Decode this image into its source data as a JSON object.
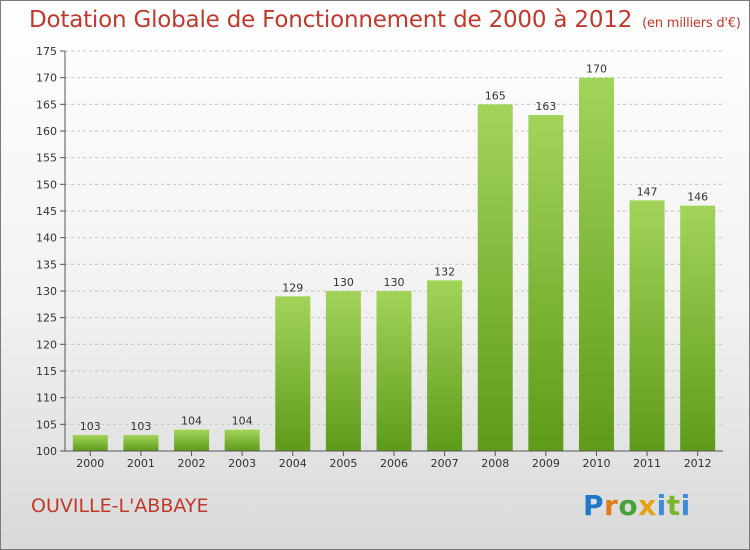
{
  "header": {
    "title": "Dotation Globale de Fonctionnement de 2000 à 2012",
    "unit": "(en milliers d'€)"
  },
  "footer": {
    "city": "OUVILLE-L'ABBAYE",
    "logo": [
      "P",
      "r",
      "o",
      "x",
      "i",
      "t",
      "i"
    ]
  },
  "colors": {
    "title": "#c0392b",
    "bar_light": "#a3d45a",
    "bar_dark": "#5e9b1a",
    "grid": "#c8c8c8"
  },
  "chart_data": {
    "type": "bar",
    "title": "Dotation Globale de Fonctionnement de 2000 à 2012",
    "subtitle": "(en milliers d'€)",
    "xlabel": "",
    "ylabel": "",
    "categories": [
      "2000",
      "2001",
      "2002",
      "2003",
      "2004",
      "2005",
      "2006",
      "2007",
      "2008",
      "2009",
      "2010",
      "2011",
      "2012"
    ],
    "values": [
      103,
      103,
      104,
      104,
      129,
      130,
      130,
      132,
      165,
      163,
      170,
      147,
      146
    ],
    "ylim": [
      100,
      175
    ],
    "yticks": [
      100,
      105,
      110,
      115,
      120,
      125,
      130,
      135,
      140,
      145,
      150,
      155,
      160,
      165,
      170,
      175
    ],
    "grid": "horizontal dashed",
    "legend": "none"
  }
}
